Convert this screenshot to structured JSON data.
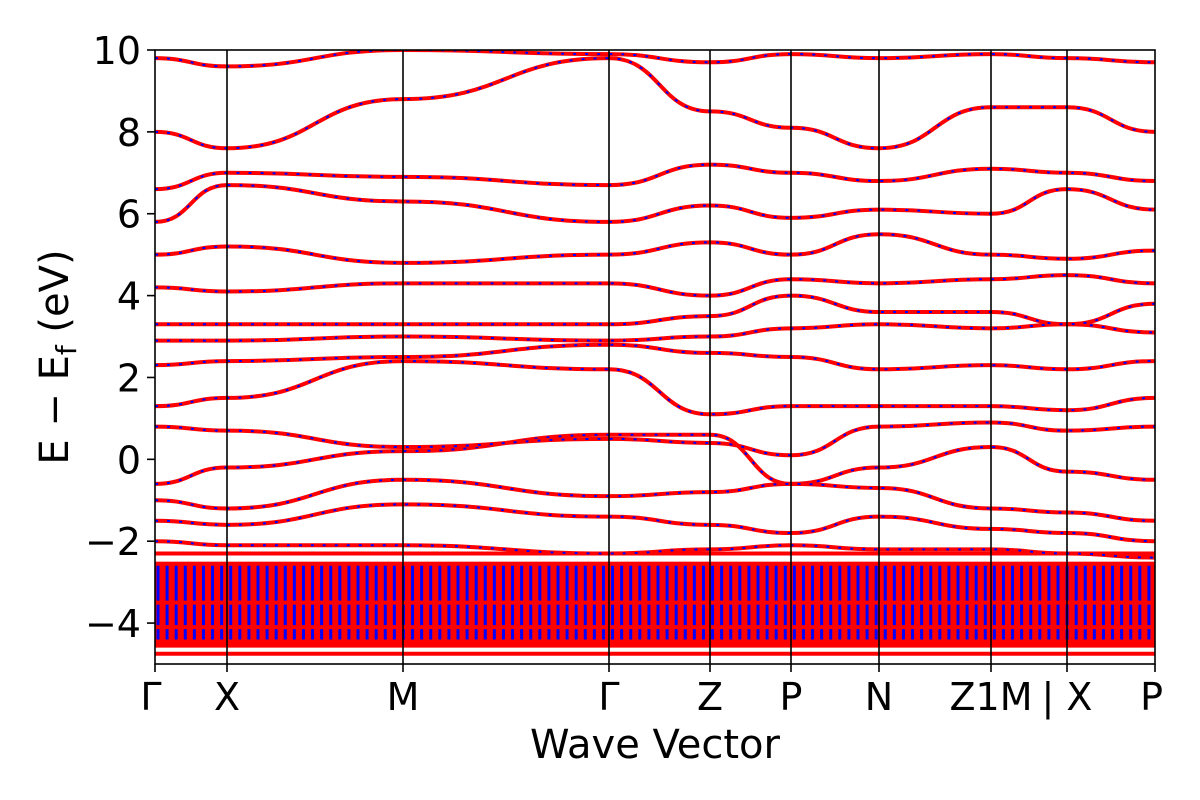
{
  "chart_data": {
    "type": "line",
    "xlabel": "Wave Vector",
    "ylabel": "E − E",
    "ylabel_sub": "f",
    "ylabel_unit": " (eV)",
    "ylim": [
      -5,
      10
    ],
    "yticks": [
      -4,
      -2,
      0,
      2,
      4,
      6,
      8,
      10
    ],
    "ytick_labels": [
      "−4",
      "−2",
      "0",
      "2",
      "4",
      "6",
      "8",
      "10"
    ],
    "kpath_positions": [
      0,
      0.072,
      0.248,
      0.454,
      0.555,
      0.636,
      0.724,
      0.836,
      0.912,
      1.0
    ],
    "kpath_labels": [
      "Γ",
      "X",
      "M",
      "Γ",
      "Z",
      "P",
      "N",
      "Z1M",
      "| X",
      "P"
    ],
    "grid": false,
    "legend": "none",
    "colors": {
      "series_a": "#ff0000",
      "series_b": "#0000ff",
      "axis": "#000000"
    },
    "bands_sample": [
      {
        "y": [
          -0.6,
          -0.2,
          0.2,
          0.6,
          0.6,
          -0.6,
          -0.2,
          0.3,
          -0.3,
          -0.5
        ]
      },
      {
        "y": [
          0.8,
          0.7,
          0.3,
          0.5,
          0.4,
          0.1,
          0.8,
          0.9,
          0.7,
          0.8
        ]
      },
      {
        "y": [
          1.3,
          1.5,
          2.4,
          2.2,
          1.1,
          1.3,
          1.3,
          1.3,
          1.2,
          1.5
        ]
      },
      {
        "y": [
          2.3,
          2.4,
          2.5,
          2.8,
          2.6,
          2.5,
          2.2,
          2.3,
          2.2,
          2.4
        ]
      },
      {
        "y": [
          2.9,
          2.9,
          3.0,
          2.9,
          3.0,
          3.2,
          3.3,
          3.2,
          3.3,
          3.1
        ]
      },
      {
        "y": [
          3.3,
          3.3,
          3.3,
          3.3,
          3.5,
          4.0,
          3.6,
          3.6,
          3.3,
          3.8
        ]
      },
      {
        "y": [
          4.2,
          4.1,
          4.3,
          4.3,
          4.0,
          4.4,
          4.3,
          4.4,
          4.5,
          4.3
        ]
      },
      {
        "y": [
          5.0,
          5.2,
          4.8,
          5.0,
          5.3,
          5.0,
          5.5,
          5.0,
          4.9,
          5.1
        ]
      },
      {
        "y": [
          5.8,
          6.7,
          6.3,
          5.8,
          6.2,
          5.9,
          6.1,
          6.0,
          6.6,
          6.1
        ]
      },
      {
        "y": [
          6.6,
          7.0,
          6.9,
          6.7,
          7.2,
          7.0,
          6.8,
          7.1,
          7.0,
          6.8
        ]
      },
      {
        "y": [
          8.0,
          7.6,
          8.8,
          9.8,
          8.5,
          8.1,
          7.6,
          8.6,
          8.6,
          8.0
        ]
      },
      {
        "y": [
          9.8,
          9.6,
          10.0,
          9.9,
          9.7,
          9.9,
          9.8,
          9.9,
          9.8,
          9.7
        ]
      },
      {
        "y": [
          -1.0,
          -1.2,
          -0.5,
          -0.9,
          -0.8,
          -0.6,
          -0.7,
          -1.2,
          -1.3,
          -1.5
        ]
      },
      {
        "y": [
          -1.5,
          -1.6,
          -1.1,
          -1.4,
          -1.6,
          -1.8,
          -1.4,
          -1.7,
          -1.8,
          -2.0
        ]
      },
      {
        "y": [
          -2.0,
          -2.1,
          -2.1,
          -2.3,
          -2.2,
          -2.1,
          -2.2,
          -2.2,
          -2.3,
          -2.4
        ]
      }
    ]
  }
}
